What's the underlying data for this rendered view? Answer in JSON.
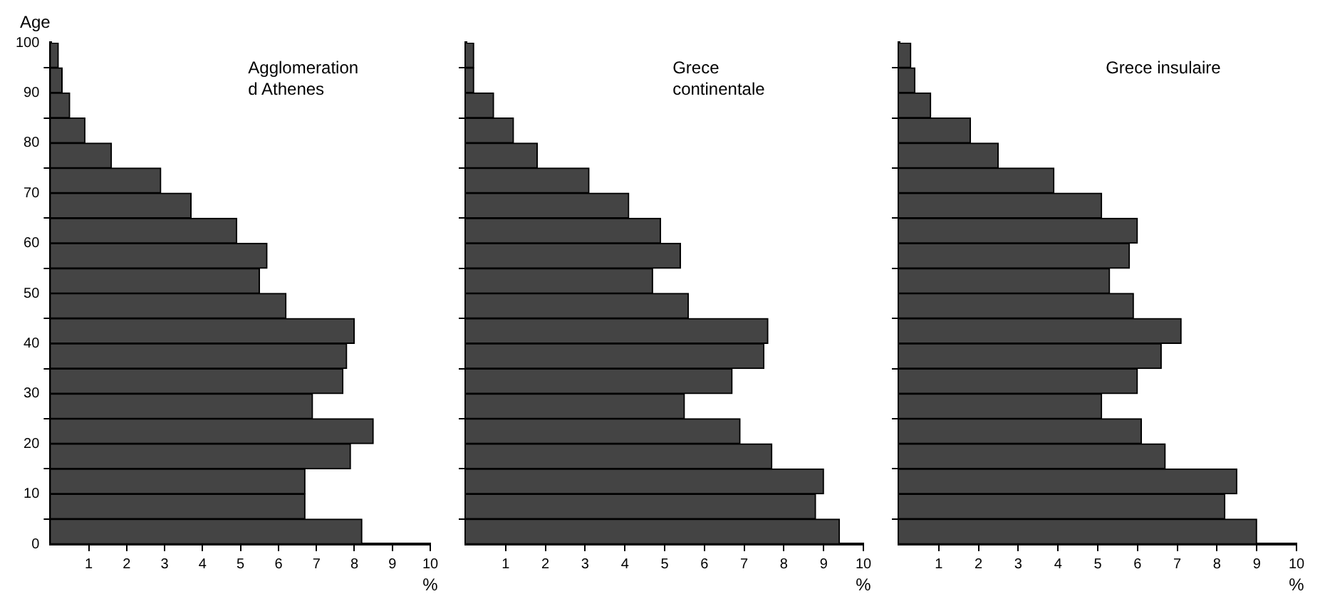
{
  "chart_data": [
    {
      "type": "histogram",
      "title": "Agglomeration d Athenes",
      "ylabel": "Age",
      "xlabel": "%",
      "orientation": "horizontal",
      "color": "#444444",
      "grid": false,
      "bins": [
        0,
        5,
        10,
        15,
        20,
        25,
        30,
        35,
        40,
        45,
        50,
        55,
        60,
        65,
        70,
        75,
        80,
        85,
        90,
        95,
        100
      ],
      "values": [
        8.2,
        6.7,
        6.7,
        7.9,
        8.5,
        6.9,
        7.7,
        7.8,
        8.0,
        6.2,
        5.5,
        5.7,
        4.9,
        3.7,
        2.9,
        1.6,
        0.9,
        0.5,
        0.3,
        0.2
      ],
      "xlim": [
        0,
        10
      ],
      "xticks": [
        1,
        2,
        3,
        4,
        5,
        6,
        7,
        8,
        9,
        10
      ],
      "ylim": [
        0,
        100
      ],
      "yticks": [
        0,
        10,
        20,
        30,
        40,
        50,
        60,
        70,
        80,
        90,
        100
      ]
    },
    {
      "type": "histogram",
      "title": "Grece continentale",
      "xlabel": "%",
      "orientation": "horizontal",
      "color": "#444444",
      "grid": false,
      "tick_labels": "x",
      "bins": [
        0,
        5,
        10,
        15,
        20,
        25,
        30,
        35,
        40,
        45,
        50,
        55,
        60,
        65,
        70,
        75,
        80,
        85,
        90,
        95,
        100
      ],
      "values": [
        9.4,
        8.8,
        9.0,
        7.7,
        6.9,
        5.5,
        6.7,
        7.5,
        7.6,
        5.6,
        4.7,
        5.4,
        4.9,
        4.1,
        3.1,
        1.8,
        1.2,
        0.7,
        0.2,
        0.2
      ],
      "xlim": [
        0,
        10
      ],
      "xticks": [
        1,
        2,
        3,
        4,
        5,
        6,
        7,
        8,
        9,
        10
      ],
      "ylim": [
        0,
        100
      ],
      "yticks": [
        0,
        10,
        20,
        30,
        40,
        50,
        60,
        70,
        80,
        90,
        100
      ]
    },
    {
      "type": "histogram",
      "title": "Grece insulaire",
      "xlabel": "%",
      "orientation": "horizontal",
      "color": "#444444",
      "grid": false,
      "tick_labels": "x",
      "bins": [
        0,
        5,
        10,
        15,
        20,
        25,
        30,
        35,
        40,
        45,
        50,
        55,
        60,
        65,
        70,
        75,
        80,
        85,
        90,
        95,
        100
      ],
      "values": [
        9.0,
        8.2,
        8.5,
        6.7,
        6.1,
        5.1,
        6.0,
        6.6,
        7.1,
        5.9,
        5.3,
        5.8,
        6.0,
        5.1,
        3.9,
        2.5,
        1.8,
        0.8,
        0.4,
        0.3
      ],
      "xlim": [
        0,
        10
      ],
      "xticks": [
        1,
        2,
        3,
        4,
        5,
        6,
        7,
        8,
        9,
        10
      ],
      "ylim": [
        0,
        100
      ],
      "yticks": [
        0,
        10,
        20,
        30,
        40,
        50,
        60,
        70,
        80,
        90,
        100
      ]
    }
  ]
}
